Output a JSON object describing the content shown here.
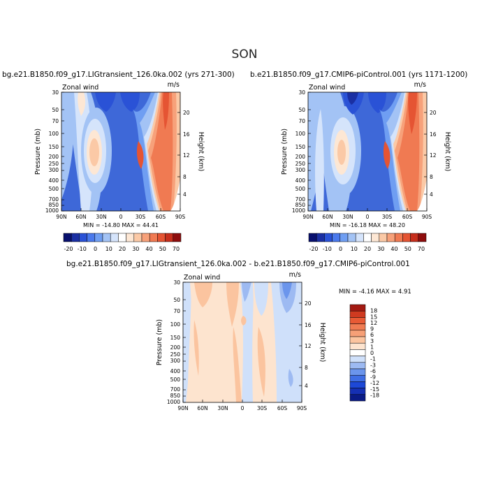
{
  "figure": {
    "season": "SON"
  },
  "colors": {
    "scale_main": [
      "#08106e",
      "#1a2fa3",
      "#2a52d6",
      "#4a79ec",
      "#6f9ef2",
      "#a3c3f5",
      "#d5e4fb",
      "#ffffff",
      "#fde7d4",
      "#fbc9a6",
      "#f7a17a",
      "#f07a52",
      "#e55433",
      "#c62e1c",
      "#8e0d0d"
    ],
    "scale_diff": [
      "#0a1b86",
      "#1530b3",
      "#1d48d6",
      "#3f6ee4",
      "#6b95ec",
      "#9dbaf2",
      "#cfe0fa",
      "#ffffff",
      "#fde4cf",
      "#fbc49f",
      "#f6a077",
      "#f07c53",
      "#e85a35",
      "#cf3a20",
      "#a31a12"
    ]
  },
  "panels": [
    {
      "title": "bg.e21.B1850.f09_g17.LIGtransient_126.0ka.002 (yrs 271-300)",
      "var_label": "Zonal wind",
      "units": "m/s",
      "minmax": "MIN = -14.80   MAX = 44.41"
    },
    {
      "title": "b.e21.B1850.f09_g17.CMIP6-piControl.001 (yrs 1171-1200)",
      "var_label": "Zonal wind",
      "units": "m/s",
      "minmax": "MIN = -16.18   MAX = 48.20"
    },
    {
      "title": "bg.e21.B1850.f09_g17.LIGtransient_126.0ka.002 - b.e21.B1850.f09_g17.CMIP6-piControl.001",
      "var_label": "Zonal wind",
      "units": "m/s",
      "minmax": "MIN =   -4.16   MAX =    4.91"
    }
  ],
  "chart_data": [
    {
      "type": "heatmap",
      "title": "bg.e21.B1850.f09_g17.LIGtransient_126.0ka.002 (yrs 271-300)",
      "xlabel": "",
      "ylabel": "Pressure (mb)",
      "y2label": "Height (km)",
      "x_ticks": [
        "90N",
        "60N",
        "30N",
        "0",
        "30S",
        "60S",
        "90S"
      ],
      "y_ticks": [
        "30",
        "50",
        "70",
        "100",
        "150",
        "200",
        "250",
        "300",
        "400",
        "500",
        "700",
        "850",
        "1000"
      ],
      "y2_ticks": [
        "20",
        "16",
        "12",
        "8",
        "4"
      ],
      "min": -14.8,
      "max": 44.41
    },
    {
      "type": "heatmap",
      "title": "b.e21.B1850.f09_g17.CMIP6-piControl.001 (yrs 1171-1200)",
      "xlabel": "",
      "ylabel": "Pressure (mb)",
      "y2label": "Height (km)",
      "x_ticks": [
        "90N",
        "60N",
        "30N",
        "0",
        "30S",
        "60S",
        "90S"
      ],
      "y_ticks": [
        "30",
        "50",
        "70",
        "100",
        "150",
        "200",
        "250",
        "300",
        "400",
        "500",
        "700",
        "850",
        "1000"
      ],
      "y2_ticks": [
        "20",
        "16",
        "12",
        "8",
        "4"
      ],
      "min": -16.18,
      "max": 48.2
    },
    {
      "type": "heatmap",
      "title": "bg.e21.B1850.f09_g17.LIGtransient_126.0ka.002 - b.e21.B1850.f09_g17.CMIP6-piControl.001",
      "xlabel": "",
      "ylabel": "Pressure (mb)",
      "y2label": "Height (km)",
      "x_ticks": [
        "90N",
        "60N",
        "30N",
        "0",
        "30S",
        "60S",
        "90S"
      ],
      "y_ticks": [
        "30",
        "50",
        "70",
        "100",
        "150",
        "200",
        "250",
        "300",
        "400",
        "500",
        "700",
        "850",
        "1000"
      ],
      "y2_ticks": [
        "20",
        "16",
        "12",
        "8",
        "4"
      ],
      "min": -4.16,
      "max": 4.91
    }
  ],
  "colorbar_main": {
    "labels": [
      "-20",
      "-10",
      "0",
      "10",
      "20",
      "30",
      "40",
      "50",
      "70"
    ]
  },
  "colorbar_diff": {
    "labels": [
      "18",
      "15",
      "12",
      "9",
      "6",
      "3",
      "1",
      "0",
      "-1",
      "-3",
      "-6",
      "-9",
      "-12",
      "-15",
      "-18"
    ]
  }
}
